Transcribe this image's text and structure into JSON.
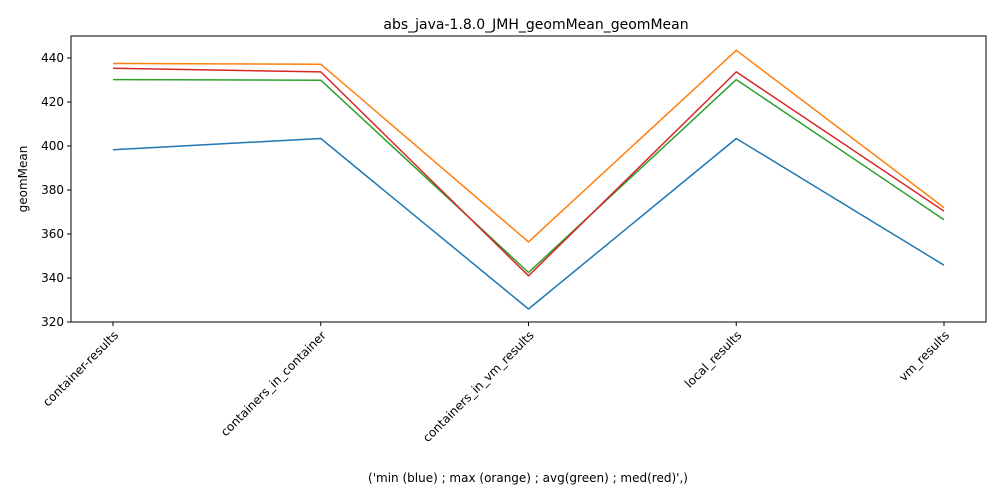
{
  "chart_data": {
    "type": "line",
    "title": "abs_java-1.8.0_JMH_geomMean_geomMean",
    "xlabel": "('min (blue) ; max (orange) ; avg(green) ; med(red)',)",
    "ylabel": "geomMean",
    "categories": [
      "container-results",
      "containers_in_container",
      "containers_in_vm_results",
      "local_results",
      "vm_results"
    ],
    "ylim": [
      320,
      450
    ],
    "yticks": [
      320,
      340,
      360,
      380,
      400,
      420,
      440
    ],
    "grid": false,
    "series": [
      {
        "color": "#1f77b4",
        "values": [
          398.3,
          403.4,
          325.9,
          403.4,
          345.8
        ]
      },
      {
        "color": "#ff7f0e",
        "values": [
          437.5,
          437.2,
          356.4,
          443.5,
          372.0
        ]
      },
      {
        "color": "#2ca02c",
        "values": [
          430.2,
          429.9,
          342.5,
          430.2,
          366.5
        ]
      },
      {
        "color": "#d62728",
        "values": [
          435.3,
          433.7,
          341.0,
          433.7,
          370.4
        ]
      }
    ]
  }
}
